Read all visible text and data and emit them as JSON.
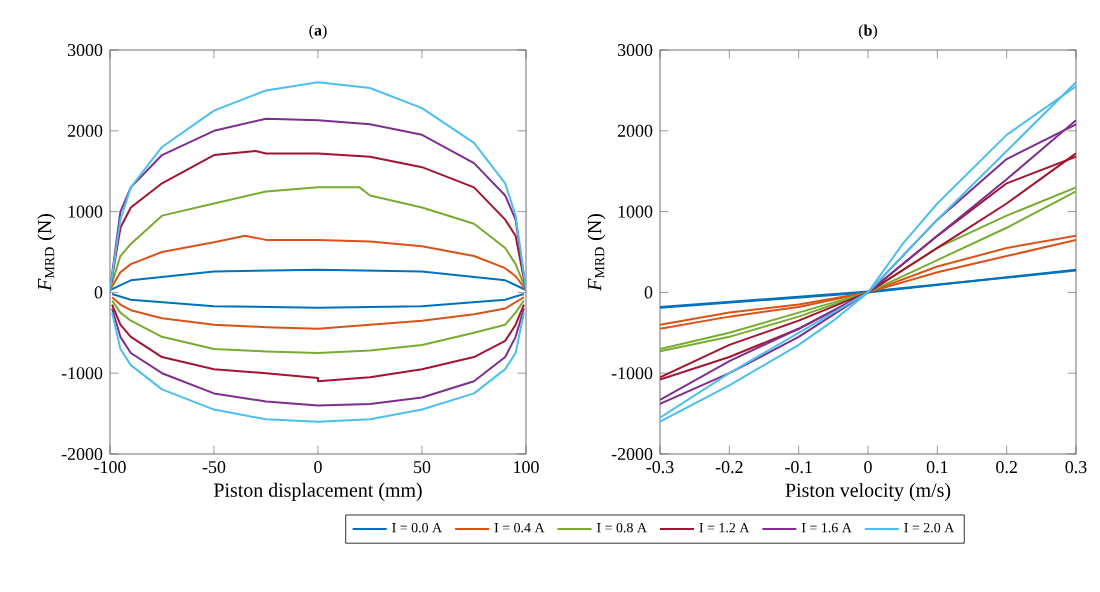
{
  "chart_data": [
    {
      "type": "line",
      "title": "(**a**)",
      "xlabel": "Piston displacement (mm)",
      "ylabel": "*F*$_{MRD}$ (N)",
      "xlim": [
        -100,
        100
      ],
      "ylim": [
        -2000,
        3000
      ],
      "xticks": [
        -100,
        -50,
        0,
        50,
        100
      ],
      "yticks": [
        -2000,
        -1000,
        0,
        1000,
        2000,
        3000
      ],
      "legend": "bottom",
      "marker": "none",
      "line_style": "solid",
      "grid": false,
      "series": [
        {
          "name": "I = 0.0 A",
          "color": "#0072bd",
          "x": [
            -100,
            -90,
            -50,
            0,
            50,
            90,
            100
          ],
          "values": [
            30,
            150,
            260,
            280,
            260,
            150,
            30
          ]
        },
        {
          "color": "#0072bd",
          "x": [
            -99,
            -90,
            -50,
            0,
            50,
            90,
            99
          ],
          "values": [
            -20,
            -90,
            -170,
            -190,
            -170,
            -90,
            -20
          ]
        },
        {
          "name": "I = 0.4 A",
          "color": "#d95319",
          "x": [
            -100,
            -95,
            -90,
            -75,
            -50,
            -35,
            -25,
            0,
            25,
            50,
            75,
            90,
            95,
            100
          ],
          "values": [
            30,
            250,
            350,
            500,
            620,
            700,
            650,
            650,
            630,
            570,
            450,
            300,
            200,
            30
          ]
        },
        {
          "color": "#d95319",
          "x": [
            -99,
            -95,
            -90,
            -75,
            -50,
            -25,
            0,
            25,
            50,
            75,
            90,
            95,
            99
          ],
          "values": [
            -60,
            -150,
            -220,
            -320,
            -400,
            -430,
            -450,
            -400,
            -350,
            -270,
            -200,
            -120,
            -60
          ]
        },
        {
          "name": "I = 0.8 A",
          "color": "#77ac30",
          "x": [
            -100,
            -95,
            -90,
            -75,
            -50,
            -25,
            0,
            20,
            25,
            50,
            75,
            90,
            95,
            100
          ],
          "values": [
            30,
            450,
            600,
            950,
            1100,
            1250,
            1300,
            1300,
            1200,
            1050,
            850,
            550,
            350,
            30
          ]
        },
        {
          "color": "#77ac30",
          "x": [
            -99,
            -95,
            -90,
            -75,
            -50,
            -25,
            0,
            25,
            50,
            75,
            90,
            95,
            99
          ],
          "values": [
            -100,
            -250,
            -350,
            -550,
            -700,
            -730,
            -750,
            -720,
            -650,
            -500,
            -400,
            -250,
            -100
          ]
        },
        {
          "name": "I = 1.2 A",
          "color": "#a2142f",
          "x": [
            -100,
            -95,
            -90,
            -75,
            -50,
            -30,
            -25,
            0,
            25,
            50,
            75,
            90,
            95,
            100
          ],
          "values": [
            30,
            800,
            1050,
            1350,
            1700,
            1750,
            1720,
            1720,
            1680,
            1550,
            1300,
            900,
            700,
            30
          ]
        },
        {
          "color": "#a2142f",
          "x": [
            -99,
            -95,
            -90,
            -75,
            -50,
            -25,
            0,
            0,
            25,
            50,
            75,
            90,
            95,
            99
          ],
          "values": [
            -150,
            -400,
            -550,
            -800,
            -950,
            -1000,
            -1060,
            -1100,
            -1050,
            -950,
            -800,
            -600,
            -400,
            -150
          ]
        },
        {
          "name": "I = 1.6 A",
          "color": "#7e2f8e",
          "x": [
            -100,
            -95,
            -90,
            -75,
            -50,
            -25,
            0,
            25,
            50,
            75,
            90,
            95,
            100
          ],
          "values": [
            30,
            1000,
            1300,
            1700,
            2000,
            2150,
            2130,
            2080,
            1950,
            1600,
            1200,
            900,
            30
          ]
        },
        {
          "color": "#7e2f8e",
          "x": [
            -99,
            -95,
            -90,
            -75,
            -50,
            -25,
            0,
            25,
            50,
            75,
            90,
            95,
            99
          ],
          "values": [
            -200,
            -550,
            -750,
            -1000,
            -1250,
            -1350,
            -1400,
            -1380,
            -1300,
            -1100,
            -800,
            -550,
            -200
          ]
        },
        {
          "name": "I = 2.0 A",
          "color": "#4dbeee",
          "x": [
            -100,
            -95,
            -90,
            -75,
            -50,
            -25,
            0,
            25,
            50,
            75,
            90,
            95,
            100
          ],
          "values": [
            30,
            900,
            1300,
            1800,
            2250,
            2500,
            2600,
            2530,
            2280,
            1850,
            1350,
            950,
            30
          ]
        },
        {
          "color": "#4dbeee",
          "x": [
            -99,
            -95,
            -90,
            -75,
            -50,
            -25,
            0,
            25,
            50,
            75,
            90,
            95,
            99
          ],
          "values": [
            -250,
            -700,
            -900,
            -1200,
            -1450,
            -1570,
            -1600,
            -1570,
            -1450,
            -1250,
            -950,
            -750,
            -250
          ]
        }
      ]
    },
    {
      "type": "line",
      "title": "(**b**)",
      "xlabel": "Piston velocity (m/s)",
      "ylabel": "*F*$_{MRD}$ (N)",
      "xlim": [
        -0.3,
        0.3
      ],
      "ylim": [
        -2000,
        3000
      ],
      "xticks": [
        -0.3,
        -0.2,
        -0.1,
        0,
        0.1,
        0.2,
        0.3
      ],
      "yticks": [
        -2000,
        -1000,
        0,
        1000,
        2000,
        3000
      ],
      "marker": "none",
      "line_style": "solid",
      "grid": false,
      "series": [
        {
          "color": "#0072bd",
          "x": [
            -0.3,
            0,
            0.3
          ],
          "values": [
            -190,
            0,
            280
          ]
        },
        {
          "color": "#0072bd",
          "x": [
            -0.3,
            0,
            0.3
          ],
          "values": [
            -180,
            10,
            270
          ]
        },
        {
          "color": "#d95319",
          "x": [
            -0.3,
            -0.2,
            -0.1,
            0,
            0.1,
            0.2,
            0.3
          ],
          "values": [
            -450,
            -300,
            -180,
            0,
            250,
            450,
            650
          ]
        },
        {
          "color": "#d95319",
          "x": [
            -0.3,
            -0.2,
            -0.1,
            0,
            0.1,
            0.2,
            0.3
          ],
          "values": [
            -400,
            -250,
            -150,
            0,
            320,
            550,
            700
          ]
        },
        {
          "color": "#77ac30",
          "x": [
            -0.3,
            -0.2,
            -0.1,
            0,
            0.1,
            0.2,
            0.3
          ],
          "values": [
            -730,
            -550,
            -300,
            0,
            400,
            800,
            1250
          ]
        },
        {
          "color": "#77ac30",
          "x": [
            -0.3,
            -0.2,
            -0.1,
            0,
            0.1,
            0.2,
            0.3
          ],
          "values": [
            -700,
            -500,
            -250,
            0,
            550,
            950,
            1300
          ]
        },
        {
          "color": "#a2142f",
          "x": [
            -0.3,
            -0.2,
            -0.1,
            0,
            0.1,
            0.2,
            0.3
          ],
          "values": [
            -1080,
            -800,
            -450,
            0,
            550,
            1100,
            1720
          ]
        },
        {
          "color": "#a2142f",
          "x": [
            -0.3,
            -0.2,
            -0.1,
            0,
            0.1,
            0.2,
            0.3
          ],
          "values": [
            -1050,
            -650,
            -350,
            0,
            700,
            1350,
            1680
          ]
        },
        {
          "color": "#7e2f8e",
          "x": [
            -0.3,
            -0.2,
            -0.1,
            0,
            0.1,
            0.2,
            0.3
          ],
          "values": [
            -1380,
            -1000,
            -550,
            0,
            700,
            1400,
            2130
          ]
        },
        {
          "color": "#7e2f8e",
          "x": [
            -0.3,
            -0.2,
            -0.1,
            0,
            0.1,
            0.2,
            0.3
          ],
          "values": [
            -1330,
            -850,
            -450,
            0,
            900,
            1650,
            2080
          ]
        },
        {
          "color": "#4dbeee",
          "x": [
            -0.3,
            -0.2,
            -0.1,
            -0.05,
            0,
            0.05,
            0.1,
            0.2,
            0.3
          ],
          "values": [
            -1600,
            -1150,
            -650,
            -350,
            0,
            450,
            900,
            1750,
            2600
          ]
        },
        {
          "color": "#4dbeee",
          "x": [
            -0.3,
            -0.2,
            -0.1,
            -0.05,
            0,
            0.05,
            0.1,
            0.2,
            0.3
          ],
          "values": [
            -1550,
            -1000,
            -500,
            -250,
            0,
            600,
            1100,
            1950,
            2550
          ]
        }
      ]
    }
  ]
}
